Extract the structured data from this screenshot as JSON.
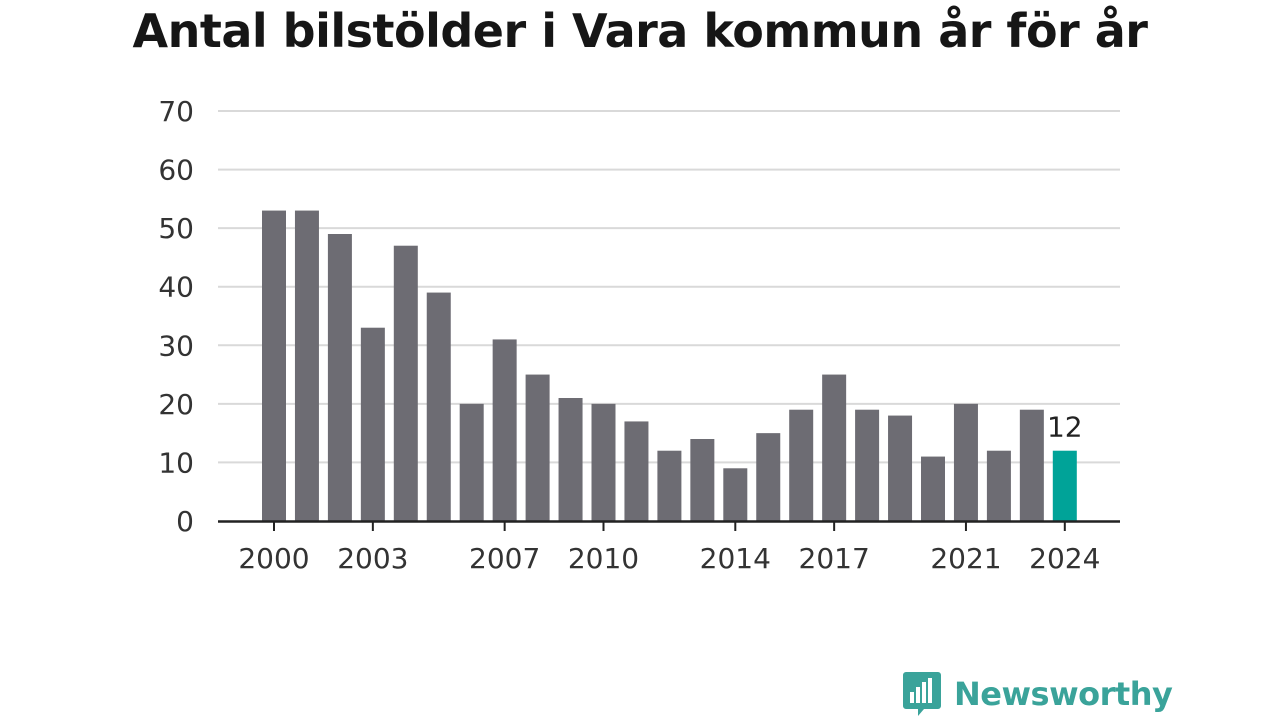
{
  "chart_data": {
    "type": "bar",
    "title": "Antal bilstölder i Vara kommun år för år",
    "xlabel": "",
    "ylabel": "",
    "ylim": [
      0,
      70
    ],
    "yticks": [
      0,
      10,
      20,
      30,
      40,
      50,
      60,
      70
    ],
    "grid": true,
    "categories": [
      "2000",
      "2001",
      "2002",
      "2003",
      "2004",
      "2005",
      "2006",
      "2007",
      "2008",
      "2009",
      "2010",
      "2011",
      "2012",
      "2013",
      "2014",
      "2015",
      "2016",
      "2017",
      "2018",
      "2019",
      "2020",
      "2021",
      "2022",
      "2023",
      "2024"
    ],
    "values": [
      53,
      53,
      49,
      33,
      47,
      39,
      20,
      31,
      25,
      21,
      20,
      17,
      12,
      14,
      9,
      15,
      19,
      25,
      19,
      18,
      11,
      20,
      12,
      19,
      12
    ],
    "xtick_labels": [
      "2000",
      "2003",
      "2007",
      "2010",
      "2014",
      "2017",
      "2021",
      "2024"
    ],
    "annotations": [
      {
        "category": "2024",
        "text": "12"
      }
    ],
    "colors": {
      "bar": "#6d6c73",
      "highlight": "#00a398",
      "grid": "#d9d9d9",
      "axis": "#222222"
    },
    "highlight_category": "2024"
  },
  "footer": {
    "logo_text": "Newsworthy",
    "logo_icon": "bar-chart-speech-bubble-icon"
  }
}
